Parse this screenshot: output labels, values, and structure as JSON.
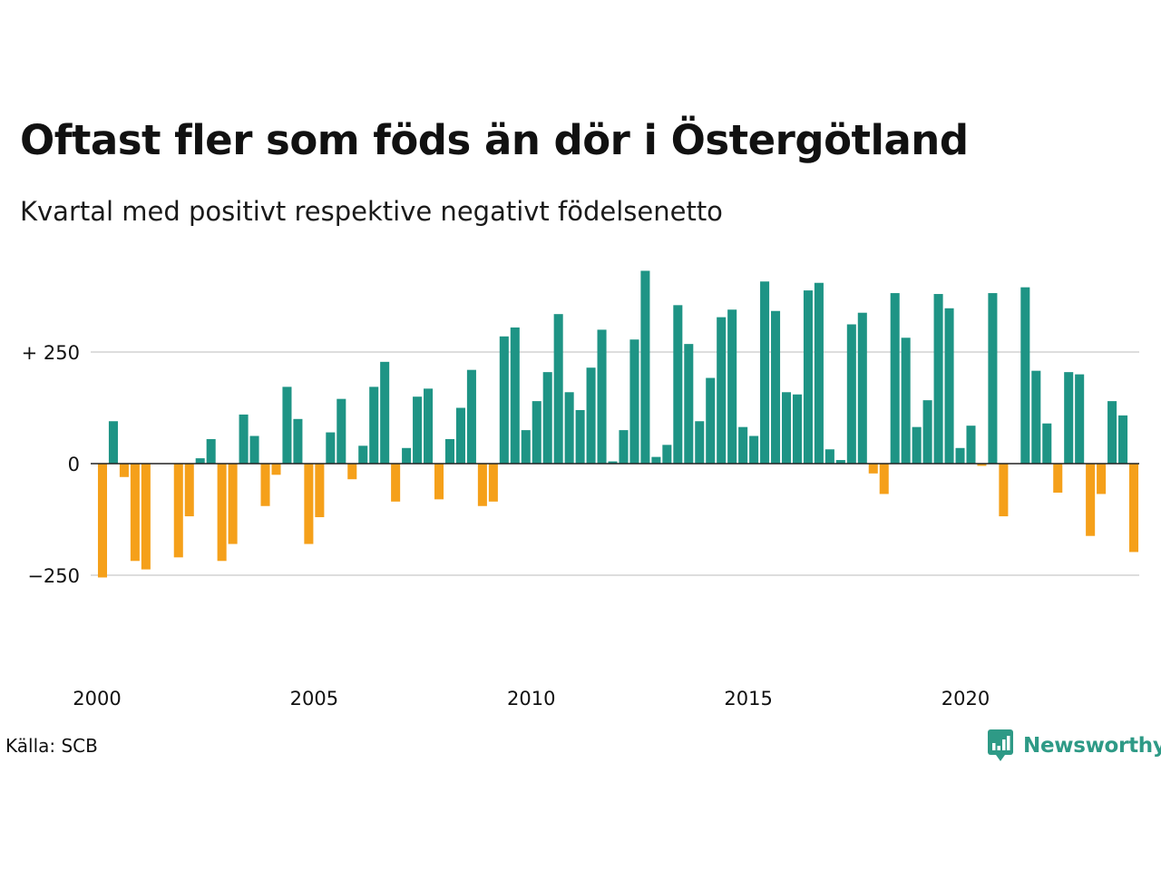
{
  "title": "Oftast fler som föds än dör i Östergötland",
  "subtitle": "Kvartal med positivt respektive negativt födelsenetto",
  "source": "Källa: SCB",
  "brand": {
    "name": "Newsworthy",
    "icon": "newsworthy-logo-icon"
  },
  "colors": {
    "positive": "#1e9485",
    "negative": "#f5a01a",
    "grid": "#dddddd",
    "zero": "#222222"
  },
  "chart_data": {
    "type": "bar",
    "x_start": "2000 Q1",
    "frequency": "quarterly",
    "ylim": [
      -400,
      450
    ],
    "ytick_values": [
      250,
      0,
      -250
    ],
    "ytick_labels": [
      "+ 250",
      "0",
      "−250"
    ],
    "xtick_labels": [
      "2000",
      "2005",
      "2010",
      "2015",
      "2020"
    ],
    "grid": true,
    "values": [
      -255,
      95,
      -30,
      -218,
      -237,
      0,
      0,
      -210,
      -118,
      12,
      55,
      -218,
      -180,
      110,
      62,
      -95,
      -25,
      172,
      100,
      -180,
      -120,
      70,
      145,
      -35,
      40,
      172,
      228,
      -85,
      35,
      150,
      168,
      -80,
      55,
      125,
      210,
      -95,
      -85,
      285,
      305,
      75,
      140,
      205,
      335,
      160,
      120,
      215,
      300,
      5,
      75,
      278,
      432,
      15,
      42,
      355,
      268,
      95,
      192,
      328,
      345,
      82,
      62,
      408,
      342,
      160,
      155,
      388,
      405,
      32,
      8,
      312,
      338,
      -22,
      -68,
      382,
      282,
      82,
      142,
      380,
      348,
      35,
      85,
      -5,
      382,
      -118,
      0,
      395,
      208,
      90,
      -65,
      205,
      200,
      -162,
      -68,
      140,
      108,
      -198
    ]
  }
}
